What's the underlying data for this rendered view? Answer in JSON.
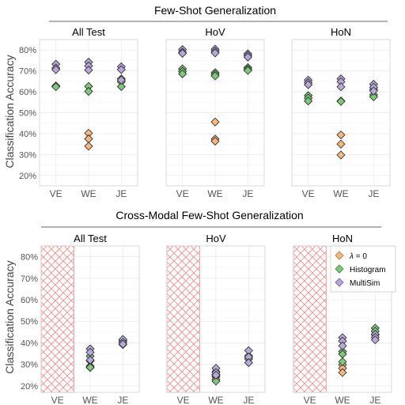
{
  "figure": {
    "section_titles": [
      "Few-Shot Generalization",
      "Cross-Modal Few-Shot Generalization"
    ],
    "ylabel": "Classification Accuracy",
    "legend": {
      "entries": [
        {
          "label_prefix": "λ",
          "label_suffix": " = 0",
          "color": "#f6b77c"
        },
        {
          "label": "Histogram",
          "color": "#7dc87a"
        },
        {
          "label": "MultiSim",
          "color": "#b8a7d9"
        }
      ]
    }
  },
  "chart_data": [
    {
      "type": "scatter",
      "section": 0,
      "title": "All Test",
      "categories": [
        "VE",
        "WE",
        "JE"
      ],
      "ylim": [
        15,
        85
      ],
      "yticks": [
        20,
        30,
        40,
        50,
        60,
        70,
        80
      ],
      "ytick_labels": [
        "20%",
        "30%",
        "40%",
        "50%",
        "60%",
        "70%",
        "80%"
      ],
      "series": [
        {
          "values": {
            "VE": [],
            "WE": [
              40.2,
              37.5,
              34.0
            ],
            "JE": []
          }
        },
        {
          "values": {
            "VE": [
              62.8,
              62.4
            ],
            "WE": [
              62.6,
              60.2
            ],
            "JE": [
              66.2,
              64.8,
              62.5
            ]
          }
        },
        {
          "values": {
            "VE": [
              73.2,
              71.4,
              70.6
            ],
            "WE": [
              74.2,
              72.4,
              70.4
            ],
            "JE": [
              72.0,
              70.6,
              65.6
            ]
          }
        }
      ]
    },
    {
      "type": "scatter",
      "section": 0,
      "title": "HoV",
      "categories": [
        "VE",
        "WE",
        "JE"
      ],
      "ylim": [
        15,
        85
      ],
      "yticks": [
        20,
        30,
        40,
        50,
        60,
        70,
        80
      ],
      "ytick_labels": [
        "20%",
        "30%",
        "40%",
        "50%",
        "60%",
        "70%",
        "80%"
      ],
      "series": [
        {
          "values": {
            "VE": [],
            "WE": [
              45.6,
              37.4,
              36.4
            ],
            "JE": []
          }
        },
        {
          "values": {
            "VE": [
              71.0,
              69.8,
              68.6
            ],
            "WE": [
              69.2,
              68.4,
              67.6
            ],
            "JE": [
              71.6,
              70.8,
              70.2
            ]
          }
        },
        {
          "values": {
            "VE": [
              80.2,
              79.0,
              78.4
            ],
            "WE": [
              80.4,
              79.4,
              78.6
            ],
            "JE": [
              78.2,
              77.4,
              76.6
            ]
          }
        }
      ]
    },
    {
      "type": "scatter",
      "section": 0,
      "title": "HoN",
      "categories": [
        "VE",
        "WE",
        "JE"
      ],
      "ylim": [
        15,
        85
      ],
      "yticks": [
        20,
        30,
        40,
        50,
        60,
        70,
        80
      ],
      "ytick_labels": [
        "20%",
        "30%",
        "40%",
        "50%",
        "60%",
        "70%",
        "80%"
      ],
      "series": [
        {
          "values": {
            "VE": [],
            "WE": [
              39.4,
              35.0,
              29.8
            ],
            "JE": []
          }
        },
        {
          "values": {
            "VE": [
              58.2,
              57.0,
              55.6
            ],
            "WE": [
              55.6,
              55.4
            ],
            "JE": [
              61.2,
              58.6,
              57.6
            ]
          }
        },
        {
          "values": {
            "VE": [
              65.6,
              64.4,
              63.4
            ],
            "WE": [
              66.2,
              64.8,
              62.4
            ],
            "JE": [
              63.6,
              62.2,
              60.4
            ]
          }
        }
      ]
    },
    {
      "type": "scatter",
      "section": 1,
      "title": "All Test",
      "categories": [
        "VE",
        "WE",
        "JE"
      ],
      "ylim": [
        17,
        85
      ],
      "yticks": [
        20,
        30,
        40,
        50,
        60,
        70,
        80
      ],
      "ytick_labels": [
        "20%",
        "30%",
        "40%",
        "50%",
        "60%",
        "70%",
        "80%"
      ],
      "hatched_category": "VE",
      "series": [
        {
          "values": {
            "VE": [],
            "WE": [
              29.2,
              28.6
            ],
            "JE": []
          }
        },
        {
          "values": {
            "VE": [],
            "WE": [
              33.8,
              31.6,
              28.6
            ],
            "JE": [
              41.0,
              40.2,
              39.2
            ]
          }
        },
        {
          "values": {
            "VE": [],
            "WE": [
              37.2,
              35.6,
              32.0
            ],
            "JE": [
              41.6,
              40.2,
              39.4
            ]
          }
        }
      ]
    },
    {
      "type": "scatter",
      "section": 1,
      "title": "HoV",
      "categories": [
        "VE",
        "WE",
        "JE"
      ],
      "ylim": [
        17,
        85
      ],
      "yticks": [
        20,
        30,
        40,
        50,
        60,
        70,
        80
      ],
      "ytick_labels": [
        "20%",
        "30%",
        "40%",
        "50%",
        "60%",
        "70%",
        "80%"
      ],
      "hatched_category": "VE",
      "series": [
        {
          "values": {
            "VE": [],
            "WE": [
              25.2,
              24.2,
              23.0
            ],
            "JE": []
          }
        },
        {
          "values": {
            "VE": [],
            "WE": [
              26.6,
              24.8,
              22.2
            ],
            "JE": [
              34.0,
              33.2,
              32.4
            ]
          }
        },
        {
          "values": {
            "VE": [],
            "WE": [
              28.2,
              26.2,
              25.0
            ],
            "JE": [
              36.4,
              33.4,
              30.8
            ]
          }
        }
      ]
    },
    {
      "type": "scatter",
      "section": 1,
      "title": "HoN",
      "categories": [
        "VE",
        "WE",
        "JE"
      ],
      "ylim": [
        17,
        85
      ],
      "yticks": [
        20,
        30,
        40,
        50,
        60,
        70,
        80
      ],
      "ytick_labels": [
        "20%",
        "30%",
        "40%",
        "50%",
        "60%",
        "70%",
        "80%"
      ],
      "hatched_category": "VE",
      "series": [
        {
          "values": {
            "VE": [],
            "WE": [
              29.8,
              28.2,
              26.2
            ],
            "JE": []
          }
        },
        {
          "values": {
            "VE": [],
            "WE": [
              36.0,
              34.8,
              31.2
            ],
            "JE": [
              46.8,
              45.4,
              43.8
            ]
          }
        },
        {
          "values": {
            "VE": [],
            "WE": [
              42.4,
              40.8,
              38.6
            ],
            "JE": [
              44.0,
              42.6,
              41.4
            ]
          }
        }
      ]
    }
  ]
}
